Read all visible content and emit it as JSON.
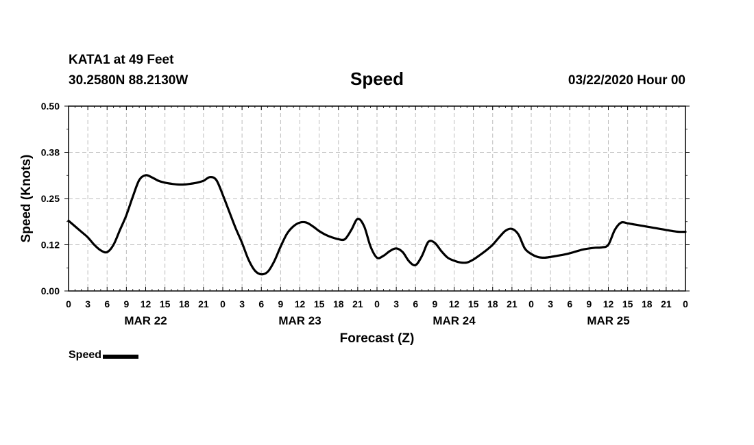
{
  "header": {
    "station": "KATA1 at 49 Feet",
    "coords": "30.2580N 88.2130W",
    "datetime": "03/22/2020 Hour 00"
  },
  "chart_data": {
    "type": "line",
    "title": "Speed",
    "xlabel": "Forecast (Z)",
    "ylabel": "Speed (Knots)",
    "ylim": [
      0,
      0.5
    ],
    "yticks": [
      "0.00",
      "0.12",
      "0.25",
      "0.38",
      "0.50"
    ],
    "ytick_values": [
      0,
      0.125,
      0.25,
      0.375,
      0.5
    ],
    "xlim": [
      0,
      96
    ],
    "xticks": [
      "0",
      "3",
      "6",
      "9",
      "12",
      "15",
      "18",
      "21",
      "0",
      "3",
      "6",
      "9",
      "12",
      "15",
      "18",
      "21",
      "0",
      "3",
      "6",
      "9",
      "12",
      "15",
      "18",
      "21",
      "0",
      "3",
      "6",
      "9",
      "12",
      "15",
      "18",
      "21",
      "0"
    ],
    "day_labels": [
      {
        "label": "MAR 22",
        "hour": 12
      },
      {
        "label": "MAR 23",
        "hour": 36
      },
      {
        "label": "MAR 24",
        "hour": 60
      },
      {
        "label": "MAR 25",
        "hour": 84
      }
    ],
    "grid": true,
    "legend": "bottom-left",
    "series": [
      {
        "name": "Speed",
        "color": "#000000",
        "x": [
          0,
          1,
          2,
          3,
          4,
          5,
          6,
          7,
          8,
          9,
          10,
          11,
          12,
          13,
          14,
          15,
          16,
          17,
          18,
          19,
          20,
          21,
          22,
          23,
          24,
          25,
          26,
          27,
          28,
          29,
          30,
          31,
          32,
          33,
          34,
          35,
          36,
          37,
          38,
          39,
          40,
          41,
          42,
          43,
          44,
          45,
          46,
          47,
          48,
          49,
          50,
          51,
          52,
          53,
          54,
          55,
          56,
          57,
          58,
          59,
          60,
          61,
          62,
          63,
          64,
          65,
          66,
          67,
          68,
          69,
          70,
          71,
          72,
          73,
          74,
          75,
          76,
          77,
          78,
          79,
          80,
          81,
          82,
          83,
          84,
          85,
          86,
          87,
          88,
          89,
          90,
          91,
          92,
          93,
          94,
          95,
          96
        ],
        "values": [
          0.19,
          0.175,
          0.16,
          0.145,
          0.125,
          0.11,
          0.105,
          0.125,
          0.165,
          0.205,
          0.255,
          0.3,
          0.313,
          0.307,
          0.298,
          0.293,
          0.29,
          0.288,
          0.288,
          0.29,
          0.293,
          0.298,
          0.308,
          0.3,
          0.26,
          0.215,
          0.17,
          0.13,
          0.085,
          0.055,
          0.045,
          0.052,
          0.08,
          0.12,
          0.155,
          0.175,
          0.185,
          0.185,
          0.175,
          0.162,
          0.152,
          0.145,
          0.14,
          0.14,
          0.165,
          0.195,
          0.175,
          0.12,
          0.09,
          0.095,
          0.108,
          0.115,
          0.105,
          0.08,
          0.07,
          0.095,
          0.133,
          0.13,
          0.108,
          0.09,
          0.082,
          0.077,
          0.077,
          0.085,
          0.097,
          0.11,
          0.125,
          0.145,
          0.163,
          0.168,
          0.153,
          0.115,
          0.1,
          0.092,
          0.09,
          0.092,
          0.095,
          0.098,
          0.102,
          0.107,
          0.112,
          0.115,
          0.117,
          0.118,
          0.125,
          0.165,
          0.185,
          0.183,
          0.18,
          0.177,
          0.174,
          0.171,
          0.168,
          0.165,
          0.162,
          0.16,
          0.16
        ]
      }
    ]
  }
}
